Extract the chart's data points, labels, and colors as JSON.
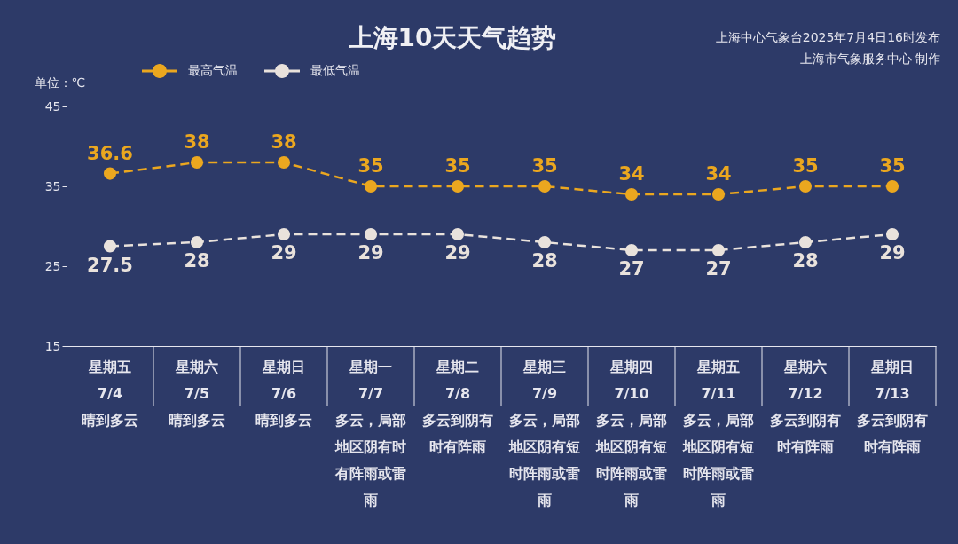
{
  "chart_data": {
    "type": "line",
    "title": "上海10天天气趋势",
    "ylabel": "单位：℃",
    "annotations": [
      "上海中心气象台2025年7月4日16时发布",
      "上海市气象服务中心 制作"
    ],
    "categories": [
      "星期五\n7/4\n晴到多云",
      "星期六\n7/5\n晴到多云",
      "星期日\n7/6\n晴到多云",
      "星期一\n7/7\n多云，局部地区阴有时有阵雨或雷雨",
      "星期二\n7/8\n多云到阴有时有阵雨",
      "星期三\n7/9\n多云，局部地区阴有短时阵雨或雷雨",
      "星期四\n7/10\n多云，局部地区阴有短时阵雨或雷雨",
      "星期五\n7/11\n多云，局部地区阴有短时阵雨或雷雨",
      "星期六\n7/12\n多云到阴有时有阵雨",
      "星期日\n7/13\n多云到阴有时有阵雨"
    ],
    "series": [
      {
        "name": "最高气温",
        "color": "#eba71f",
        "values": [
          36.6,
          38,
          38,
          35,
          35,
          35,
          34,
          34,
          35,
          35
        ]
      },
      {
        "name": "最低气温",
        "color": "#e9e2dc",
        "values": [
          27.5,
          28,
          29,
          29,
          29,
          28,
          27,
          27,
          28,
          29
        ]
      }
    ],
    "ylim": [
      15,
      45
    ],
    "yticks": [
      15,
      25,
      35,
      45
    ],
    "legend": "top left",
    "marker": "circle",
    "line_style": "dashed",
    "data_labels": true
  }
}
